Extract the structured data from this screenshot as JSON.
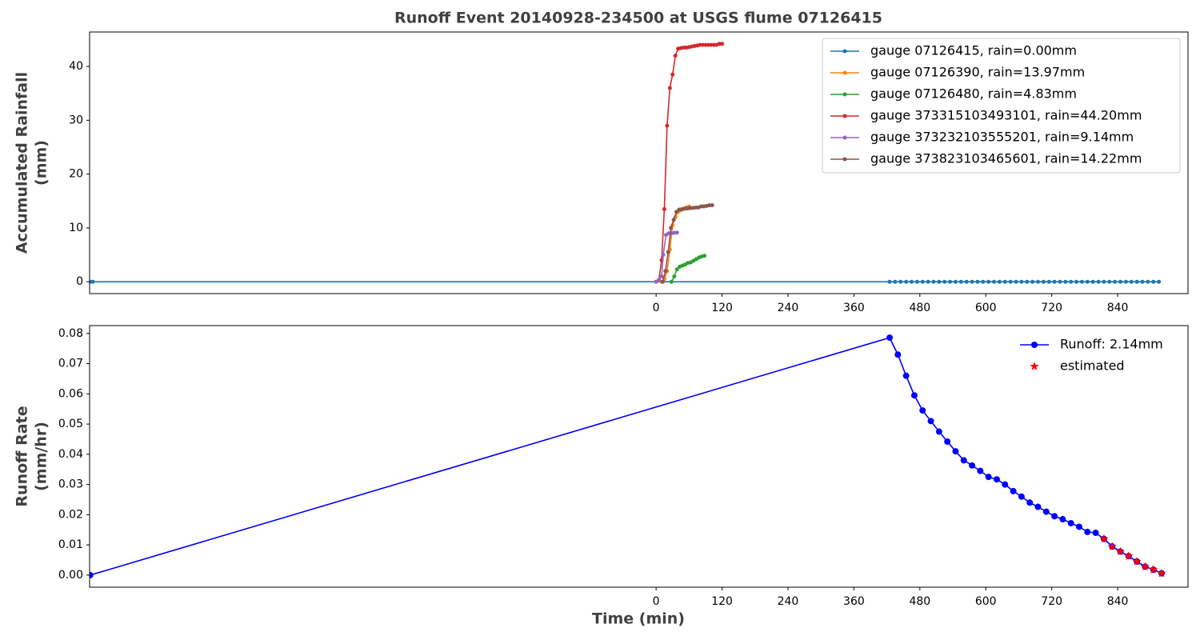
{
  "chart_data": [
    {
      "type": "line",
      "title": "Runoff Event 20140928-234500 at USGS flume 07126415",
      "ylabel": [
        "Accumulated Rainfall",
        "(mm)"
      ],
      "xlim": [
        -1031,
        968
      ],
      "ylim": [
        -2.2,
        46.4
      ],
      "xticks": [
        0,
        120,
        240,
        360,
        480,
        600,
        720,
        840
      ],
      "yticks": [
        0,
        10,
        20,
        30,
        40
      ],
      "legend": "upper right",
      "legend_frame": true,
      "marker_size": 2.5,
      "series": [
        {
          "name": "gauge 07126415, rain=0.00mm",
          "color": "#1f77b4",
          "marker": "dot",
          "x": [
            -1030,
            -1025,
            425,
            435,
            445,
            455,
            465,
            475,
            485,
            495,
            505,
            515,
            525,
            535,
            545,
            555,
            565,
            575,
            585,
            595,
            605,
            615,
            625,
            635,
            645,
            655,
            665,
            675,
            685,
            695,
            705,
            715,
            725,
            735,
            745,
            755,
            765,
            775,
            785,
            795,
            805,
            815,
            825,
            835,
            845,
            855,
            865,
            875,
            885,
            895,
            905,
            915
          ],
          "values": [
            0,
            0,
            0,
            0,
            0,
            0,
            0,
            0,
            0,
            0,
            0,
            0,
            0,
            0,
            0,
            0,
            0,
            0,
            0,
            0,
            0,
            0,
            0,
            0,
            0,
            0,
            0,
            0,
            0,
            0,
            0,
            0,
            0,
            0,
            0,
            0,
            0,
            0,
            0,
            0,
            0,
            0,
            0,
            0,
            0,
            0,
            0,
            0,
            0,
            0,
            0,
            0
          ]
        },
        {
          "name": "gauge 07126390, rain=13.97mm",
          "color": "#ff7f0e",
          "marker": "dot",
          "x": [
            10,
            15,
            20,
            25,
            30,
            35,
            40,
            45,
            50,
            55,
            60
          ],
          "values": [
            0,
            0.5,
            2,
            6,
            10.5,
            12,
            13,
            13.3,
            13.5,
            13.8,
            13.97
          ]
        },
        {
          "name": "gauge 07126480, rain=4.83mm",
          "color": "#2ca02c",
          "marker": "dot",
          "x": [
            28,
            33,
            38,
            43,
            48,
            53,
            58,
            63,
            68,
            73,
            78,
            83,
            88
          ],
          "values": [
            0,
            1,
            2.3,
            2.8,
            3,
            3.2,
            3.5,
            3.6,
            3.9,
            4.2,
            4.5,
            4.7,
            4.83
          ]
        },
        {
          "name": "gauge 373315103493101, rain=44.20mm",
          "color": "#d62728",
          "marker": "dot",
          "x": [
            0,
            5,
            10,
            15,
            20,
            25,
            30,
            35,
            40,
            45,
            50,
            55,
            60,
            65,
            70,
            75,
            80,
            85,
            90,
            95,
            100,
            105,
            110,
            115,
            120
          ],
          "values": [
            0,
            0.3,
            4,
            13.5,
            29,
            36,
            38.5,
            42,
            43.3,
            43.4,
            43.5,
            43.5,
            43.6,
            43.7,
            43.8,
            43.9,
            44,
            44,
            44,
            44,
            44,
            44,
            44,
            44.2,
            44.2
          ]
        },
        {
          "name": "gauge 373232103555201, rain=9.14mm",
          "color": "#9467bd",
          "marker": "dot",
          "x": [
            0,
            5,
            10,
            13,
            18,
            23,
            28,
            33,
            38
          ],
          "values": [
            0,
            0.3,
            1,
            5,
            8.7,
            9,
            9,
            9.1,
            9.14
          ]
        },
        {
          "name": "gauge 373823103465601, rain=14.22mm",
          "color": "#8c564b",
          "marker": "dot",
          "x": [
            12,
            17,
            22,
            27,
            32,
            37,
            42,
            47,
            52,
            57,
            62,
            67,
            72,
            77,
            82,
            87,
            92,
            97,
            102
          ],
          "values": [
            0,
            2,
            5.5,
            10,
            11.5,
            13,
            13.4,
            13.5,
            13.6,
            13.6,
            13.7,
            13.7,
            13.8,
            13.8,
            14,
            14,
            14.1,
            14.2,
            14.22
          ]
        }
      ]
    },
    {
      "type": "line",
      "xlabel": "Time (min)",
      "ylabel": [
        "Runoff Rate",
        "(mm/hr)"
      ],
      "xlim": [
        -1031,
        968
      ],
      "ylim": [
        -0.004,
        0.0826
      ],
      "xticks": [
        0,
        120,
        240,
        360,
        480,
        600,
        720,
        840
      ],
      "yticks": [
        {
          "value": 0,
          "label": "0.00"
        },
        {
          "value": 0.01,
          "label": "0.01"
        },
        {
          "value": 0.02,
          "label": "0.02"
        },
        {
          "value": 0.03,
          "label": "0.03"
        },
        {
          "value": 0.04,
          "label": "0.04"
        },
        {
          "value": 0.05,
          "label": "0.05"
        },
        {
          "value": 0.06,
          "label": "0.06"
        },
        {
          "value": 0.07,
          "label": "0.07"
        },
        {
          "value": 0.08,
          "label": "0.08"
        }
      ],
      "legend": "upper right",
      "legend_frame": false,
      "marker_size": 4,
      "series": [
        {
          "name": "Runoff: 2.14mm",
          "color": "#0000ff",
          "marker": "dot",
          "x": [
            -1030,
            425,
            440,
            455,
            470,
            485,
            500,
            515,
            530,
            545,
            560,
            575,
            590,
            605,
            620,
            635,
            650,
            665,
            680,
            695,
            710,
            725,
            740,
            755,
            770,
            785,
            800,
            815,
            830,
            845,
            860,
            875,
            890,
            905,
            920
          ],
          "values": [
            0,
            0.0786,
            0.073,
            0.066,
            0.0595,
            0.0545,
            0.051,
            0.0475,
            0.0442,
            0.041,
            0.038,
            0.0363,
            0.0345,
            0.0325,
            0.0317,
            0.03,
            0.0278,
            0.026,
            0.024,
            0.0226,
            0.021,
            0.0195,
            0.0185,
            0.0172,
            0.016,
            0.0143,
            0.014,
            0.012,
            0.0095,
            0.0078,
            0.0063,
            0.0045,
            0.0028,
            0.0018,
            0.0006
          ]
        },
        {
          "name": "estimated",
          "color": "#ff0000",
          "marker": "star",
          "linestyle": "none",
          "x": [
            815,
            830,
            845,
            860,
            875,
            890,
            905,
            920
          ],
          "values": [
            0.012,
            0.0095,
            0.0078,
            0.0063,
            0.0045,
            0.0028,
            0.0018,
            0.0006
          ]
        }
      ]
    }
  ]
}
